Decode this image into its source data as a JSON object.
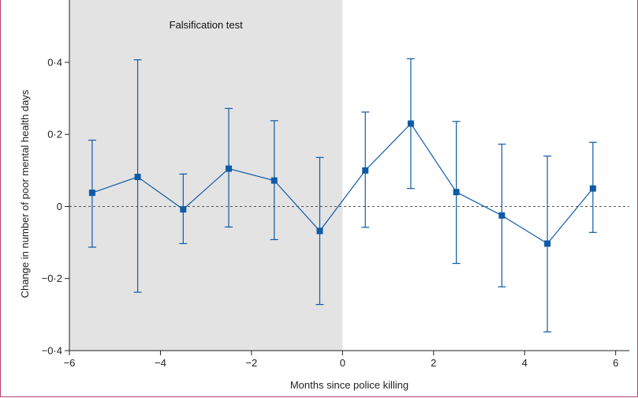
{
  "chart_data": {
    "type": "scatter",
    "title": "",
    "xlabel": "Months since police killing",
    "ylabel": "Change in number of poor mental health days",
    "xlim": [
      -6,
      6.3
    ],
    "ylim": [
      -0.4,
      0.47
    ],
    "x_ticks": [
      -6,
      -4,
      -2,
      0,
      2,
      4,
      6
    ],
    "x_tick_labels": [
      "−6",
      "−4",
      "−2",
      "0",
      "2",
      "4",
      "6"
    ],
    "y_ticks": [
      -0.4,
      -0.2,
      0,
      0.2,
      0.4
    ],
    "y_tick_labels": [
      "−0·4",
      "−0·2",
      "0",
      "0·2",
      "0·4"
    ],
    "reference_line_y": 0,
    "shaded_region": {
      "x_from": -6,
      "x_to": 0,
      "label": "Falsification test",
      "color": "#e3e3e3"
    },
    "series_color": "#0f5aa6",
    "points": [
      {
        "x": -5.5,
        "y": 0.038,
        "lo": -0.113,
        "hi": 0.184
      },
      {
        "x": -4.5,
        "y": 0.082,
        "lo": -0.238,
        "hi": 0.407
      },
      {
        "x": -3.5,
        "y": -0.008,
        "lo": -0.103,
        "hi": 0.09
      },
      {
        "x": -2.5,
        "y": 0.105,
        "lo": -0.057,
        "hi": 0.272
      },
      {
        "x": -1.5,
        "y": 0.072,
        "lo": -0.092,
        "hi": 0.238
      },
      {
        "x": -0.5,
        "y": -0.068,
        "lo": -0.272,
        "hi": 0.136
      },
      {
        "x": 0.5,
        "y": 0.1,
        "lo": -0.058,
        "hi": 0.262
      },
      {
        "x": 1.5,
        "y": 0.23,
        "lo": 0.05,
        "hi": 0.41
      },
      {
        "x": 2.5,
        "y": 0.04,
        "lo": -0.158,
        "hi": 0.236
      },
      {
        "x": 3.5,
        "y": -0.025,
        "lo": -0.223,
        "hi": 0.173
      },
      {
        "x": 4.5,
        "y": -0.103,
        "lo": -0.348,
        "hi": 0.14
      },
      {
        "x": 5.5,
        "y": 0.05,
        "lo": -0.072,
        "hi": 0.178
      }
    ]
  }
}
